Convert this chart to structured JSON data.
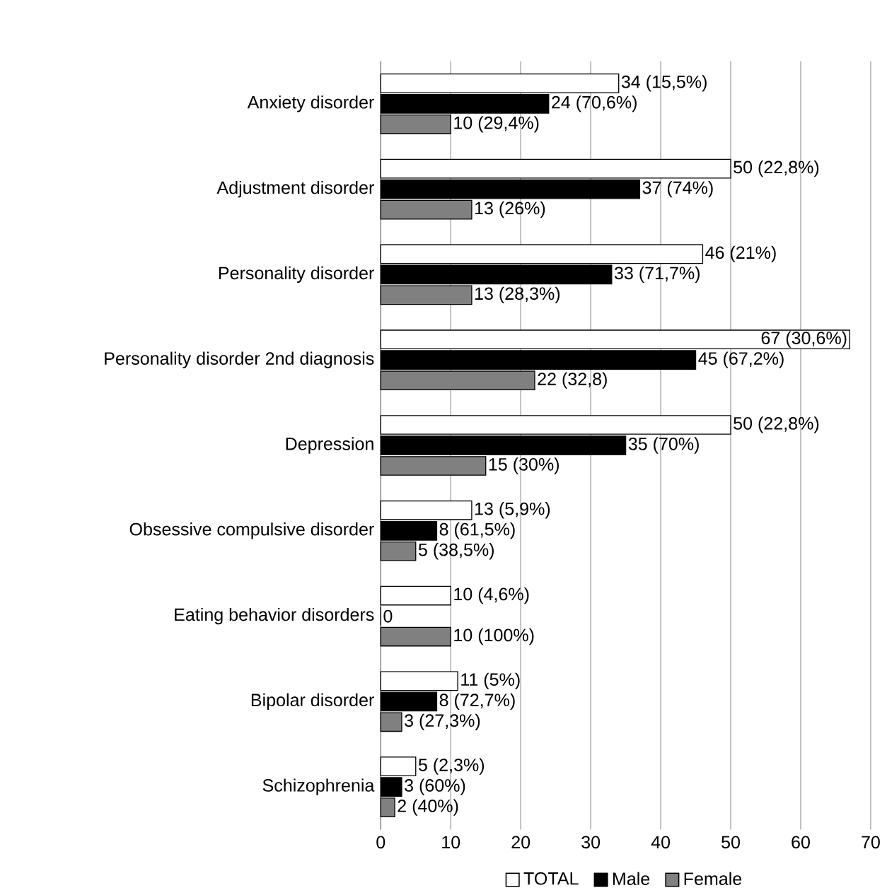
{
  "chart_data": {
    "type": "bar",
    "orientation": "horizontal",
    "categories": [
      "Anxiety disorder",
      "Adjustment disorder",
      "Personality disorder",
      "Personality disorder 2nd diagnosis",
      "Depression",
      "Obsessive compulsive disorder",
      "Eating behavior disorders",
      "Bipolar disorder",
      "Schizophrenia"
    ],
    "series": [
      {
        "name": "TOTAL",
        "color": "#ffffff",
        "values": [
          34,
          50,
          46,
          67,
          50,
          13,
          10,
          11,
          5
        ],
        "value_labels": [
          "34 (15,5%)",
          "50 (22,8%)",
          "46 (21%)",
          "67 (30,6%)",
          "50 (22,8%)",
          "13 (5,9%)",
          "10 (4,6%)",
          "11 (5%)",
          "5 (2,3%)"
        ]
      },
      {
        "name": "Male",
        "color": "#000000",
        "values": [
          24,
          37,
          33,
          45,
          35,
          8,
          0,
          8,
          3
        ],
        "value_labels": [
          "24 (70,6%)",
          "37 (74%)",
          "33 (71,7%)",
          "45 (67,2%)",
          "35 (70%)",
          "8 (61,5%)",
          "0",
          "8 (72,7%)",
          "3 (60%)"
        ]
      },
      {
        "name": "Female",
        "color": "#808080",
        "values": [
          10,
          13,
          13,
          22,
          15,
          5,
          10,
          3,
          2
        ],
        "value_labels": [
          "10 (29,4%)",
          "13 (26%)",
          "13 (28,3%)",
          "22 (32,8)",
          "15 (30%)",
          "5 (38,5%)",
          "10 (100%)",
          "3 (27,3%)",
          "2 (40%)"
        ]
      }
    ],
    "xlim": [
      0,
      70
    ],
    "xticks": [
      0,
      10,
      20,
      30,
      40,
      50,
      60,
      70
    ],
    "grid": "x",
    "legend": "bottom"
  }
}
